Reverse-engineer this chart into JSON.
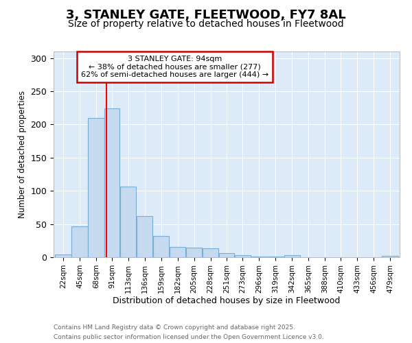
{
  "title1": "3, STANLEY GATE, FLEETWOOD, FY7 8AL",
  "title2": "Size of property relative to detached houses in Fleetwood",
  "xlabel": "Distribution of detached houses by size in Fleetwood",
  "ylabel": "Number of detached properties",
  "bar_labels": [
    "22sqm",
    "45sqm",
    "68sqm",
    "91sqm",
    "113sqm",
    "136sqm",
    "159sqm",
    "182sqm",
    "205sqm",
    "228sqm",
    "251sqm",
    "273sqm",
    "296sqm",
    "319sqm",
    "342sqm",
    "365sqm",
    "388sqm",
    "410sqm",
    "433sqm",
    "456sqm",
    "479sqm"
  ],
  "bar_values": [
    4,
    46,
    210,
    224,
    106,
    62,
    32,
    16,
    14,
    13,
    6,
    3,
    1,
    1,
    3,
    0,
    0,
    0,
    0,
    0,
    2
  ],
  "bin_edges": [
    22,
    45,
    68,
    91,
    113,
    136,
    159,
    182,
    205,
    228,
    251,
    273,
    296,
    319,
    342,
    365,
    388,
    410,
    433,
    456,
    479,
    502
  ],
  "bar_color": "#c5d9ef",
  "bar_edge_color": "#7aadd4",
  "red_line_x": 94,
  "ylim": [
    0,
    310
  ],
  "yticks": [
    0,
    50,
    100,
    150,
    200,
    250,
    300
  ],
  "annotation_text": "3 STANLEY GATE: 94sqm\n← 38% of detached houses are smaller (277)\n62% of semi-detached houses are larger (444) →",
  "annotation_box_color": "#ffffff",
  "annotation_box_edge_color": "#cc0000",
  "footer1": "Contains HM Land Registry data © Crown copyright and database right 2025.",
  "footer2": "Contains public sector information licensed under the Open Government Licence v3.0.",
  "figure_background": "#ffffff",
  "axes_background": "#ddeaf7",
  "grid_color": "#ffffff",
  "title1_fontsize": 13,
  "title2_fontsize": 10
}
